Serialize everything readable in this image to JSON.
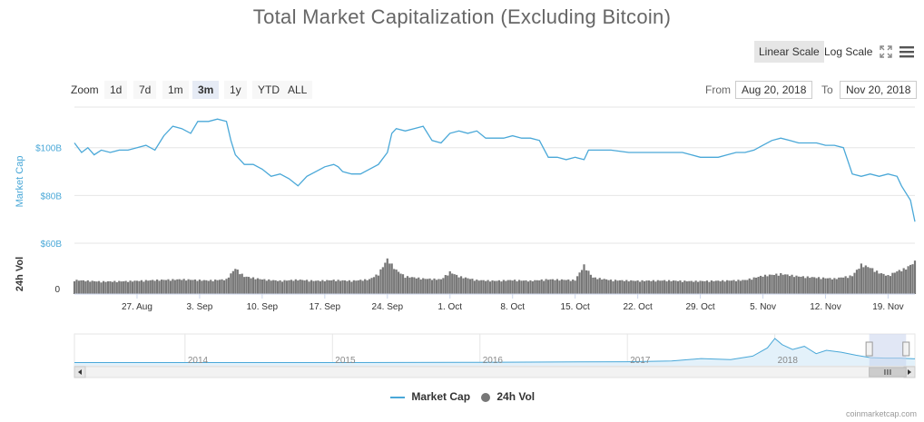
{
  "title": "Total Market Capitalization (Excluding Bitcoin)",
  "scale_buttons": {
    "linear": "Linear Scale",
    "log": "Log Scale"
  },
  "toolbar": {
    "fullscreen_icon": "expand-icon",
    "menu_icon": "hamburger-menu-icon"
  },
  "zoom": {
    "label": "Zoom",
    "buttons": [
      "1d",
      "7d",
      "1m",
      "3m",
      "1y",
      "YTD",
      "ALL"
    ],
    "active": "3m"
  },
  "range": {
    "from_label": "From",
    "from_value": "Aug 20, 2018",
    "to_label": "To",
    "to_value": "Nov 20, 2018"
  },
  "legend": {
    "market_cap": "Market Cap",
    "volume": "24h Vol"
  },
  "credit": "coinmarketcap.com",
  "colors": {
    "line": "#4aa8d8",
    "volume": "#777777",
    "navigator_fill": "#e3f1fa",
    "selection": "#c8d4ec"
  },
  "chart_data": {
    "type": "line",
    "title": "Total Market Capitalization (Excluding Bitcoin)",
    "ylabel": "Market Cap",
    "y_ticks": [
      {
        "value": 100,
        "label": "$100B"
      },
      {
        "value": 80,
        "label": "$80B"
      },
      {
        "value": 60,
        "label": "$60B"
      }
    ],
    "ylim": [
      60,
      117
    ],
    "volume_label": "24h Vol",
    "volume_tick": "0",
    "x_ticks": [
      {
        "day": 7,
        "label": "27. Aug"
      },
      {
        "day": 14,
        "label": "3. Sep"
      },
      {
        "day": 21,
        "label": "10. Sep"
      },
      {
        "day": 28,
        "label": "17. Sep"
      },
      {
        "day": 35,
        "label": "24. Sep"
      },
      {
        "day": 42,
        "label": "1. Oct"
      },
      {
        "day": 49,
        "label": "8. Oct"
      },
      {
        "day": 56,
        "label": "15. Oct"
      },
      {
        "day": 63,
        "label": "22. Oct"
      },
      {
        "day": 70,
        "label": "29. Oct"
      },
      {
        "day": 77,
        "label": "5. Nov"
      },
      {
        "day": 84,
        "label": "12. Nov"
      },
      {
        "day": 91,
        "label": "19. Nov"
      }
    ],
    "xlim": [
      0,
      94
    ],
    "series": [
      {
        "name": "Market Cap",
        "unit": "B USD",
        "points": [
          [
            0,
            102
          ],
          [
            0.8,
            98
          ],
          [
            1.5,
            100
          ],
          [
            2.2,
            97
          ],
          [
            3,
            99
          ],
          [
            4,
            98
          ],
          [
            5,
            99
          ],
          [
            6,
            99
          ],
          [
            7,
            100
          ],
          [
            8,
            101
          ],
          [
            9,
            99
          ],
          [
            10,
            105
          ],
          [
            11,
            109
          ],
          [
            12,
            108
          ],
          [
            13,
            106
          ],
          [
            13.8,
            111
          ],
          [
            15,
            111
          ],
          [
            16,
            112
          ],
          [
            17,
            111
          ],
          [
            17.5,
            103
          ],
          [
            18,
            97
          ],
          [
            19,
            93
          ],
          [
            20,
            93
          ],
          [
            21,
            91
          ],
          [
            22,
            88
          ],
          [
            23,
            89
          ],
          [
            24,
            87
          ],
          [
            25,
            84
          ],
          [
            26,
            88
          ],
          [
            27,
            90
          ],
          [
            28,
            92
          ],
          [
            29,
            93
          ],
          [
            29.5,
            92
          ],
          [
            30,
            90
          ],
          [
            31,
            89
          ],
          [
            32,
            89
          ],
          [
            33,
            91
          ],
          [
            34,
            93
          ],
          [
            35,
            98
          ],
          [
            35.5,
            106
          ],
          [
            36,
            108
          ],
          [
            37,
            107
          ],
          [
            38,
            108
          ],
          [
            39,
            109
          ],
          [
            40,
            103
          ],
          [
            41,
            102
          ],
          [
            42,
            106
          ],
          [
            43,
            107
          ],
          [
            44,
            106
          ],
          [
            45,
            107
          ],
          [
            46,
            104
          ],
          [
            47,
            104
          ],
          [
            48,
            104
          ],
          [
            49,
            105
          ],
          [
            50,
            104
          ],
          [
            51,
            104
          ],
          [
            52,
            103
          ],
          [
            53,
            96
          ],
          [
            54,
            96
          ],
          [
            55,
            95
          ],
          [
            56,
            96
          ],
          [
            57,
            95
          ],
          [
            57.5,
            99
          ],
          [
            58,
            99
          ],
          [
            60,
            99
          ],
          [
            62,
            98
          ],
          [
            64,
            98
          ],
          [
            66,
            98
          ],
          [
            68,
            98
          ],
          [
            69,
            97
          ],
          [
            70,
            96
          ],
          [
            72,
            96
          ],
          [
            73,
            97
          ],
          [
            74,
            98
          ],
          [
            75,
            98
          ],
          [
            76,
            99
          ],
          [
            77,
            101
          ],
          [
            78,
            103
          ],
          [
            79,
            104
          ],
          [
            80,
            103
          ],
          [
            81,
            102
          ],
          [
            82,
            102
          ],
          [
            83,
            102
          ],
          [
            84,
            101
          ],
          [
            85,
            101
          ],
          [
            86,
            100
          ],
          [
            87,
            89
          ],
          [
            88,
            88
          ],
          [
            89,
            89
          ],
          [
            90,
            88
          ],
          [
            91,
            89
          ],
          [
            92,
            88
          ],
          [
            92.5,
            84
          ],
          [
            93,
            81
          ],
          [
            93.5,
            78
          ],
          [
            94,
            69
          ]
        ]
      },
      {
        "name": "24h Vol",
        "unit": "relative",
        "points": [
          [
            0,
            0.38
          ],
          [
            3,
            0.34
          ],
          [
            6,
            0.35
          ],
          [
            9,
            0.38
          ],
          [
            12,
            0.4
          ],
          [
            15,
            0.37
          ],
          [
            17,
            0.4
          ],
          [
            18,
            0.7
          ],
          [
            19,
            0.48
          ],
          [
            21,
            0.4
          ],
          [
            23,
            0.36
          ],
          [
            25,
            0.39
          ],
          [
            27,
            0.36
          ],
          [
            29,
            0.38
          ],
          [
            31,
            0.36
          ],
          [
            33,
            0.4
          ],
          [
            34,
            0.55
          ],
          [
            35,
            0.95
          ],
          [
            36,
            0.65
          ],
          [
            37,
            0.48
          ],
          [
            39,
            0.42
          ],
          [
            41,
            0.4
          ],
          [
            42,
            0.6
          ],
          [
            43,
            0.48
          ],
          [
            45,
            0.38
          ],
          [
            47,
            0.36
          ],
          [
            49,
            0.38
          ],
          [
            51,
            0.36
          ],
          [
            53,
            0.4
          ],
          [
            56,
            0.38
          ],
          [
            57,
            0.78
          ],
          [
            58,
            0.45
          ],
          [
            60,
            0.38
          ],
          [
            63,
            0.36
          ],
          [
            66,
            0.37
          ],
          [
            69,
            0.35
          ],
          [
            72,
            0.36
          ],
          [
            75,
            0.38
          ],
          [
            77,
            0.5
          ],
          [
            79,
            0.55
          ],
          [
            81,
            0.48
          ],
          [
            83,
            0.45
          ],
          [
            85,
            0.42
          ],
          [
            87,
            0.5
          ],
          [
            88,
            0.8
          ],
          [
            89,
            0.72
          ],
          [
            90,
            0.58
          ],
          [
            91,
            0.5
          ],
          [
            92,
            0.62
          ],
          [
            93,
            0.7
          ],
          [
            94,
            0.88
          ]
        ]
      }
    ]
  },
  "navigator": {
    "x_labels": [
      {
        "year": 2014,
        "label": "2014"
      },
      {
        "year": 2015,
        "label": "2015"
      },
      {
        "year": 2016,
        "label": "2016"
      },
      {
        "year": 2017,
        "label": "2017"
      },
      {
        "year": 2018,
        "label": "2018"
      }
    ],
    "xlim": [
      2013.25,
      2018.95
    ],
    "series": [
      [
        2013.25,
        0.02
      ],
      [
        2014,
        0.02
      ],
      [
        2015,
        0.02
      ],
      [
        2016,
        0.03
      ],
      [
        2017,
        0.05
      ],
      [
        2017.3,
        0.08
      ],
      [
        2017.5,
        0.18
      ],
      [
        2017.7,
        0.14
      ],
      [
        2017.85,
        0.28
      ],
      [
        2017.95,
        0.62
      ],
      [
        2018.0,
        1.0
      ],
      [
        2018.05,
        0.75
      ],
      [
        2018.12,
        0.55
      ],
      [
        2018.2,
        0.68
      ],
      [
        2018.28,
        0.38
      ],
      [
        2018.35,
        0.52
      ],
      [
        2018.45,
        0.44
      ],
      [
        2018.55,
        0.32
      ],
      [
        2018.65,
        0.22
      ],
      [
        2018.75,
        0.2
      ],
      [
        2018.85,
        0.2
      ],
      [
        2018.95,
        0.17
      ]
    ],
    "selection": [
      2018.64,
      2018.89
    ]
  }
}
